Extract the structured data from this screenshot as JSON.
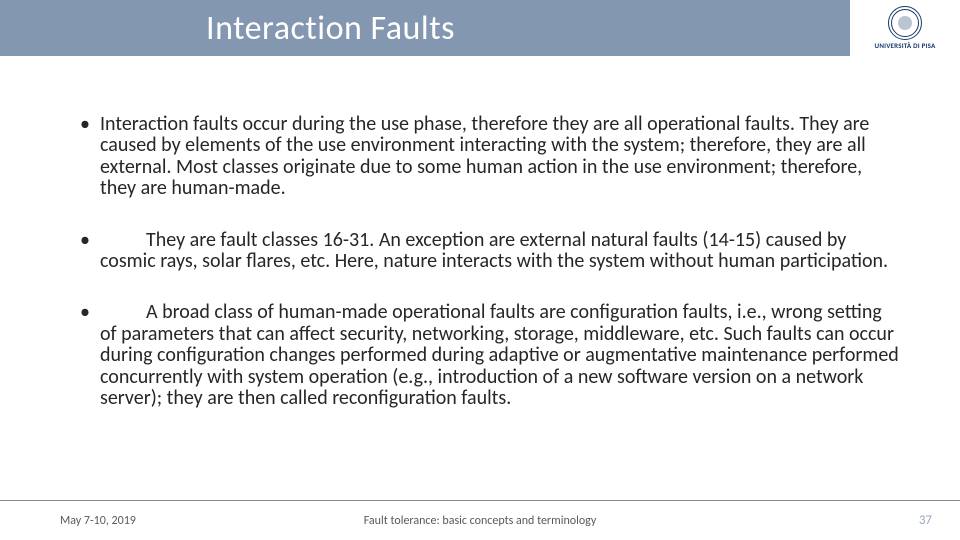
{
  "title": "Interaction Faults",
  "logo": {
    "name": "UNIVERSITÀ DI PISA"
  },
  "bullets": [
    "Interaction faults occur during the use phase, therefore they are all operational faults. They are caused by elements of the use environment interacting with the system; therefore, they are all external. Most classes originate due to some human action in the use environment; therefore, they are human-made.",
    "They are fault classes 16-31. An exception are external natural faults (14-15) caused by cosmic rays, solar flares, etc. Here, nature interacts with the system without human participation.",
    "A broad class of human-made operational faults are configuration faults, i.e., wrong setting of parameters that can affect security, networking, storage, middleware, etc. Such faults can occur during configuration changes performed during adaptive or augmentative maintenance performed concurrently with system operation (e.g., introduction of a new software version on a network server); they are then called reconfiguration faults."
  ],
  "footer": {
    "date": "May 7-10, 2019",
    "title": "Fault tolerance: basic concepts and terminology",
    "page": "37"
  },
  "style": {
    "slide_size": [
      960,
      540
    ],
    "title_bar_color": "#8497b0",
    "title_text_color": "#ffffff",
    "title_fontsize_pt": 26,
    "body_text_color": "#262626",
    "body_fontsize_pt": 15,
    "body_line_height": 1.07,
    "footer_text_color": "#595959",
    "footer_fontsize_pt": 9,
    "page_number_color": "#9aa7bd",
    "footer_divider_color": "#888888",
    "logo_accent_color": "#1a3a6e",
    "background_color": "#ffffff",
    "font_family": "Calibri"
  }
}
